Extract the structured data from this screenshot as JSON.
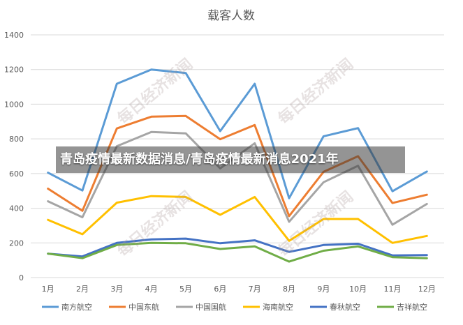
{
  "overlay": {
    "headline": "青岛疫情最新数据消息/青岛疫情最新消息2021年",
    "watermark_text": "每日经济新闻"
  },
  "chart_data": {
    "type": "line",
    "title": "载客人数",
    "xlabel": "",
    "ylabel": "",
    "categories": [
      "1月",
      "2月",
      "3月",
      "4月",
      "5月",
      "6月",
      "7月",
      "8月",
      "9月",
      "10月",
      "11月",
      "12月"
    ],
    "ylim": [
      0,
      1400
    ],
    "yticks": [
      0,
      200,
      400,
      600,
      800,
      1000,
      1200,
      1400
    ],
    "grid": true,
    "legend_position": "bottom",
    "series": [
      {
        "name": "南方航空",
        "color": "#5b9bd5",
        "values": [
          605,
          502,
          1118,
          1200,
          1180,
          845,
          1118,
          458,
          815,
          862,
          498,
          612
        ]
      },
      {
        "name": "中国东航",
        "color": "#ed7d31",
        "values": [
          513,
          385,
          860,
          928,
          932,
          798,
          880,
          355,
          610,
          700,
          430,
          478
        ]
      },
      {
        "name": "中国国航",
        "color": "#a5a5a5",
        "values": [
          440,
          348,
          758,
          840,
          832,
          630,
          775,
          322,
          550,
          645,
          305,
          425
        ]
      },
      {
        "name": "海南航空",
        "color": "#ffc000",
        "values": [
          333,
          250,
          432,
          470,
          465,
          362,
          465,
          212,
          338,
          338,
          200,
          240
        ]
      },
      {
        "name": "春秋航空",
        "color": "#4472c4",
        "values": [
          138,
          122,
          200,
          220,
          225,
          198,
          215,
          148,
          188,
          195,
          128,
          130
        ]
      },
      {
        "name": "吉祥航空",
        "color": "#70ad47",
        "values": [
          138,
          112,
          188,
          200,
          198,
          165,
          180,
          92,
          155,
          180,
          118,
          112
        ]
      }
    ]
  }
}
